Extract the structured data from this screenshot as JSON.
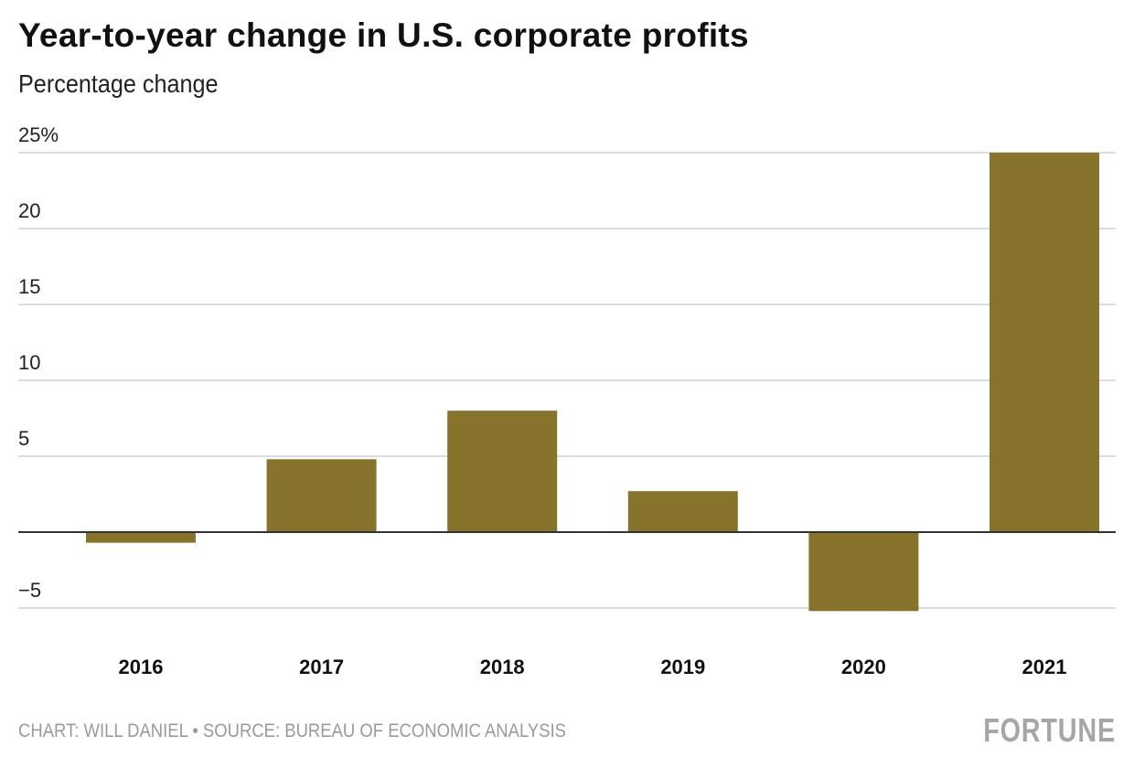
{
  "chart_data": {
    "type": "bar",
    "title": "Year-to-year change in U.S. corporate profits",
    "subtitle": "Percentage change",
    "categories": [
      "2016",
      "2017",
      "2018",
      "2019",
      "2020",
      "2021"
    ],
    "values": [
      -0.7,
      4.8,
      8.0,
      2.7,
      -5.2,
      25.0
    ],
    "ylim": [
      -5,
      25
    ],
    "yticks": [
      25,
      20,
      15,
      10,
      5,
      -5
    ],
    "ytick_labels": [
      "25%",
      "20",
      "15",
      "10",
      "5",
      "−5"
    ],
    "grid": true,
    "bar_color": "#87732b",
    "xlabel": "",
    "ylabel": ""
  },
  "footer": {
    "credit": "CHART: WILL DANIEL • SOURCE: BUREAU OF ECONOMIC ANALYSIS",
    "logo": "FORTUNE"
  }
}
